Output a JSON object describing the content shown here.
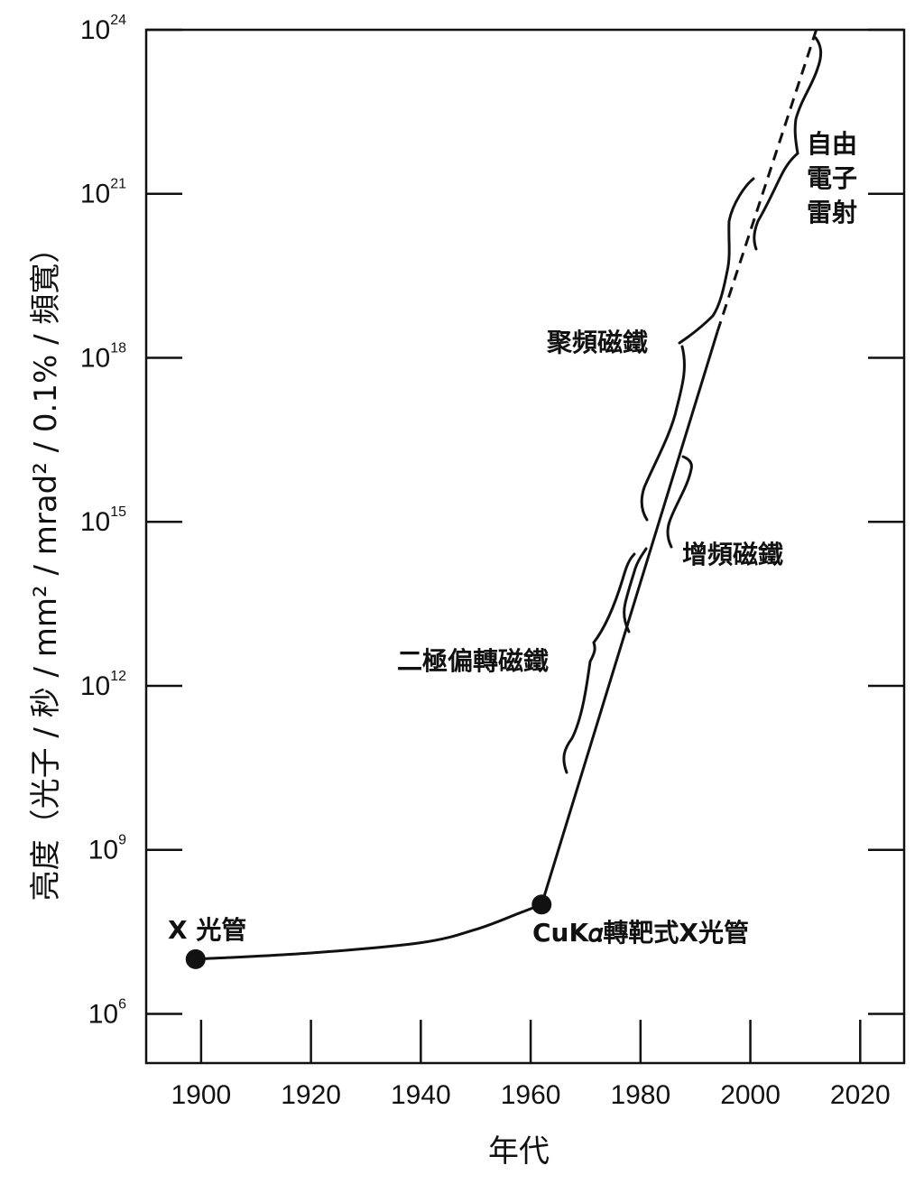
{
  "chart_data": {
    "type": "line",
    "xlabel": "年代",
    "ylabel": "亮度（光子 / 秒 / mm² / mrad² / 0.1% / 頻寬）",
    "xlim": [
      1890,
      2028
    ],
    "ylim_log10": [
      5.1,
      24
    ],
    "y_scale": "log",
    "grid": false,
    "x_ticks": [
      "1900",
      "1920",
      "1940",
      "1960",
      "1980",
      "2000",
      "2020"
    ],
    "y_ticks": [
      {
        "base": "10",
        "exp": "6"
      },
      {
        "base": "10",
        "exp": "9"
      },
      {
        "base": "10",
        "exp": "12"
      },
      {
        "base": "10",
        "exp": "15"
      },
      {
        "base": "10",
        "exp": "18"
      },
      {
        "base": "10",
        "exp": "21"
      },
      {
        "base": "10",
        "exp": "24"
      }
    ],
    "series": [
      {
        "style": "solid",
        "points": [
          {
            "x": 1899,
            "y": "1e7"
          },
          {
            "x": 1920,
            "y": "1.3e7"
          },
          {
            "x": 1940,
            "y": "2e7"
          },
          {
            "x": 1950,
            "y": "3.5e7"
          },
          {
            "x": 1958,
            "y": "7e7"
          },
          {
            "x": 1962,
            "y": "1e8"
          },
          {
            "x": 1994,
            "y": "3e18"
          }
        ]
      },
      {
        "style": "dashed",
        "points": [
          {
            "x": 1994,
            "y": "3e18"
          },
          {
            "x": 2012,
            "y": "1e24"
          }
        ]
      }
    ],
    "markers": [
      {
        "x": 1899,
        "y": "1e7"
      },
      {
        "x": 1962,
        "y": "1e8"
      }
    ],
    "annotations": [
      {
        "text": "X 光管"
      },
      {
        "text": "CuK𝛼轉靶式X光管"
      },
      {
        "text": "二極偏轉磁鐵"
      },
      {
        "text": "增頻磁鐵"
      },
      {
        "text": "聚頻磁鐵"
      },
      {
        "text": "自由"
      },
      {
        "text": "電子"
      },
      {
        "text": "雷射"
      }
    ]
  }
}
